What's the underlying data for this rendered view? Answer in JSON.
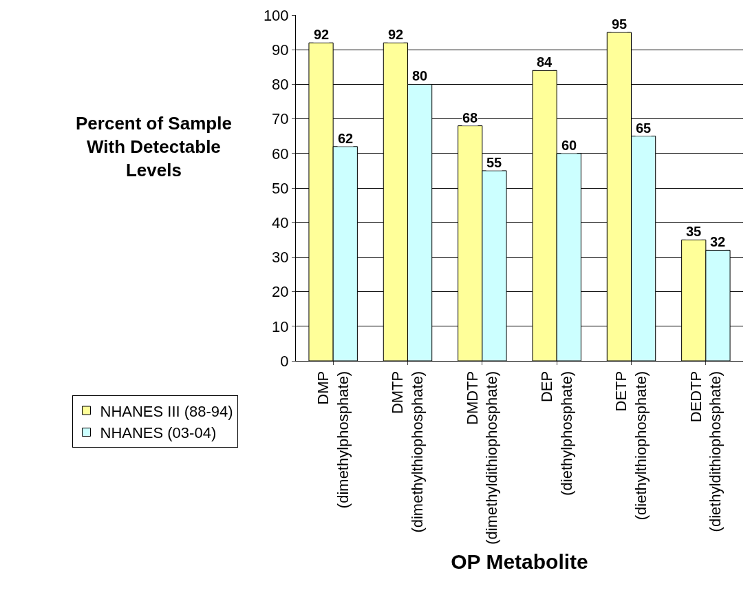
{
  "chart_data": {
    "type": "bar",
    "xlabel": "OP Metabolite",
    "ylabel": "Percent of Sample With Detectable Levels",
    "categories": [
      "DMP (dimethylphosphate)",
      "DMTP (dimethylthiophosphate)",
      "DMDTP (dimethyldithiophosphate)",
      "DEP (diethylphosphate)",
      "DETP (diethylthiophosphate)",
      "DEDTP (diethyldithiophosphate)"
    ],
    "series": [
      {
        "name": "NHANES III (88-94)",
        "color": "#ffff99",
        "values": [
          92,
          92,
          68,
          84,
          95,
          35
        ]
      },
      {
        "name": "NHANES (03-04)",
        "color": "#ccffff",
        "values": [
          62,
          80,
          55,
          60,
          65,
          32
        ]
      }
    ],
    "ylim": [
      0,
      100
    ],
    "yticks": [
      0,
      10,
      20,
      30,
      40,
      50,
      60,
      70,
      80,
      90,
      100
    ],
    "grid": "y",
    "legend": "left",
    "data_labels": true
  }
}
